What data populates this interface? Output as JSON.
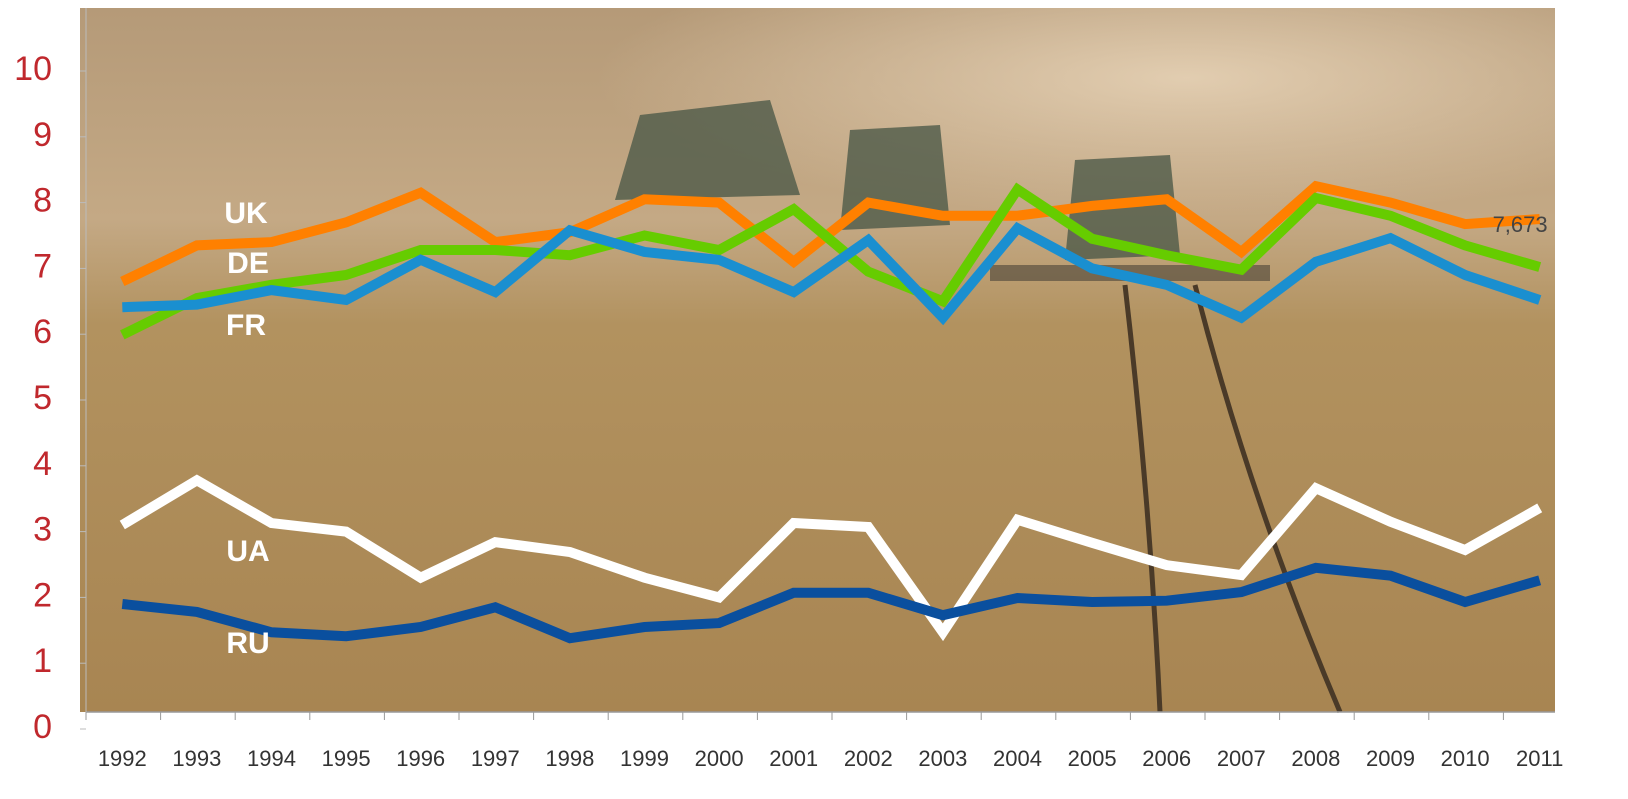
{
  "chart_data": {
    "type": "line",
    "categories": [
      "1992",
      "1993",
      "1994",
      "1995",
      "1996",
      "1997",
      "1998",
      "1999",
      "2000",
      "2001",
      "2002",
      "2003",
      "2004",
      "2005",
      "2006",
      "2007",
      "2008",
      "2009",
      "2010",
      "2011"
    ],
    "series": [
      {
        "name": "UK",
        "color": "#ff8000",
        "values": [
          6.8,
          7.35,
          7.4,
          7.7,
          8.15,
          7.4,
          7.55,
          8.05,
          8.0,
          7.1,
          8.0,
          7.8,
          7.8,
          7.95,
          8.05,
          7.25,
          8.25,
          8.0,
          7.673,
          7.75
        ],
        "value_labels": [
          null,
          null,
          null,
          null,
          null,
          null,
          null,
          null,
          null,
          null,
          null,
          null,
          null,
          null,
          null,
          null,
          null,
          null,
          "7,673",
          null
        ]
      },
      {
        "name": "DE",
        "color": "#66cc00",
        "values": [
          5.99,
          6.55,
          6.75,
          6.9,
          7.28,
          7.28,
          7.2,
          7.5,
          7.28,
          7.9,
          6.95,
          6.5,
          8.2,
          7.45,
          7.2,
          6.98,
          8.07,
          7.8,
          7.35,
          7.02
        ]
      },
      {
        "name": "FR",
        "color": "#1a8fd0",
        "values": [
          6.41,
          6.45,
          6.67,
          6.52,
          7.13,
          6.64,
          7.58,
          7.25,
          7.13,
          6.64,
          7.43,
          6.25,
          7.61,
          7.0,
          6.75,
          6.25,
          7.1,
          7.46,
          6.9,
          6.52
        ]
      },
      {
        "name": "UA",
        "color": "#ffffff",
        "values": [
          3.1,
          3.78,
          3.13,
          3.0,
          2.3,
          2.84,
          2.69,
          2.3,
          2.0,
          3.13,
          3.07,
          1.47,
          3.18,
          2.83,
          2.49,
          2.34,
          3.66,
          3.15,
          2.72,
          3.36
        ]
      },
      {
        "name": "RU",
        "color": "#0a4f9e",
        "values": [
          1.9,
          1.78,
          1.47,
          1.41,
          1.55,
          1.85,
          1.38,
          1.55,
          1.61,
          2.07,
          2.07,
          1.73,
          1.99,
          1.93,
          1.95,
          2.08,
          2.45,
          2.33,
          1.93,
          2.26
        ]
      }
    ],
    "ylim": [
      0,
      10.8
    ],
    "yticks": [
      0,
      1,
      2,
      3,
      4,
      5,
      6,
      7,
      8,
      9,
      10
    ]
  }
}
